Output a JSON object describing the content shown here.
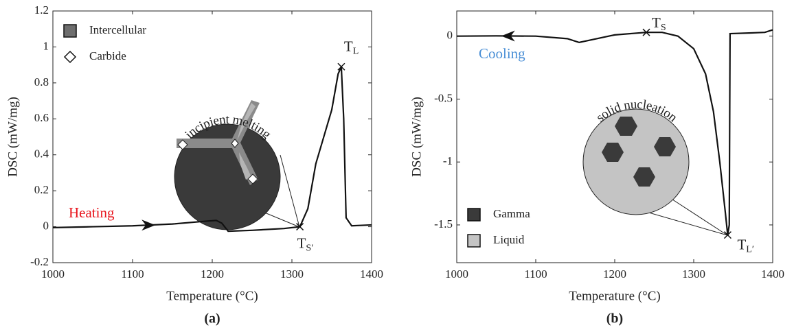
{
  "chart_data": [
    {
      "type": "line",
      "caption": "(a)",
      "x_label": "Temperature (°C)",
      "y_label": "DSC (mW/mg)",
      "xlim": [
        1000,
        1400
      ],
      "xticks": [
        1000,
        1100,
        1200,
        1300,
        1400
      ],
      "ylim": [
        -0.2,
        1.2
      ],
      "yticks": [
        -0.2,
        0,
        0.2,
        0.4,
        0.6,
        0.8,
        1,
        1.2
      ],
      "x": [
        1000,
        1050,
        1100,
        1150,
        1190,
        1205,
        1212,
        1220,
        1250,
        1290,
        1310,
        1320,
        1330,
        1340,
        1350,
        1358,
        1362,
        1365,
        1368,
        1375,
        1400
      ],
      "series": [
        {
          "color": "#111111",
          "values": [
            -0.005,
            0,
            0.005,
            0.015,
            0.03,
            0.035,
            0.02,
            -0.025,
            -0.02,
            -0.01,
            0,
            0.1,
            0.35,
            0.5,
            0.65,
            0.85,
            0.89,
            0.6,
            0.05,
            0.005,
            0.01
          ]
        }
      ],
      "direction_label": {
        "text": "Heating",
        "color": "#e8141c"
      },
      "annotations": [
        {
          "text": "T",
          "sub": "S′",
          "x": 1310,
          "y": 0
        },
        {
          "text": "T",
          "sub": "L",
          "x": 1362,
          "y": 0.89
        }
      ],
      "inset_label": "incipient melting",
      "legend": [
        {
          "label": "Intercellular",
          "color": "#6e6e6e",
          "marker": "square"
        },
        {
          "label": "Carbide",
          "color": "#ffffff",
          "marker": "diamond"
        }
      ]
    },
    {
      "type": "line",
      "caption": "(b)",
      "x_label": "Temperature (°C)",
      "y_label": "DSC (mW/mg)",
      "xlim": [
        1000,
        1400
      ],
      "xticks": [
        1000,
        1100,
        1200,
        1300,
        1400
      ],
      "ylim": [
        -1.8,
        0.2
      ],
      "yticks": [
        -1.5,
        -1,
        -0.5,
        0
      ],
      "x": [
        1000,
        1050,
        1100,
        1140,
        1155,
        1170,
        1200,
        1240,
        1260,
        1280,
        1300,
        1315,
        1325,
        1333,
        1340,
        1343,
        1345,
        1346,
        1370,
        1390,
        1400
      ],
      "series": [
        {
          "color": "#111111",
          "values": [
            0,
            0.002,
            0,
            -0.02,
            -0.05,
            -0.03,
            0.01,
            0.03,
            0.03,
            0,
            -0.1,
            -0.3,
            -0.6,
            -1,
            -1.4,
            -1.58,
            -1.5,
            0.02,
            0.025,
            0.03,
            0.05
          ]
        }
      ],
      "direction_label": {
        "text": "Cooling",
        "color": "#4a8fd6"
      },
      "annotations": [
        {
          "text": "T",
          "sub": "S",
          "x": 1240,
          "y": 0.03
        },
        {
          "text": "T",
          "sub": "L′",
          "x": 1343,
          "y": -1.58
        }
      ],
      "inset_label": "solid nucleation",
      "legend": [
        {
          "label": "Gamma",
          "color": "#3a3a3a",
          "marker": "square"
        },
        {
          "label": "Liquid",
          "color": "#c4c4c4",
          "marker": "square"
        }
      ]
    }
  ]
}
